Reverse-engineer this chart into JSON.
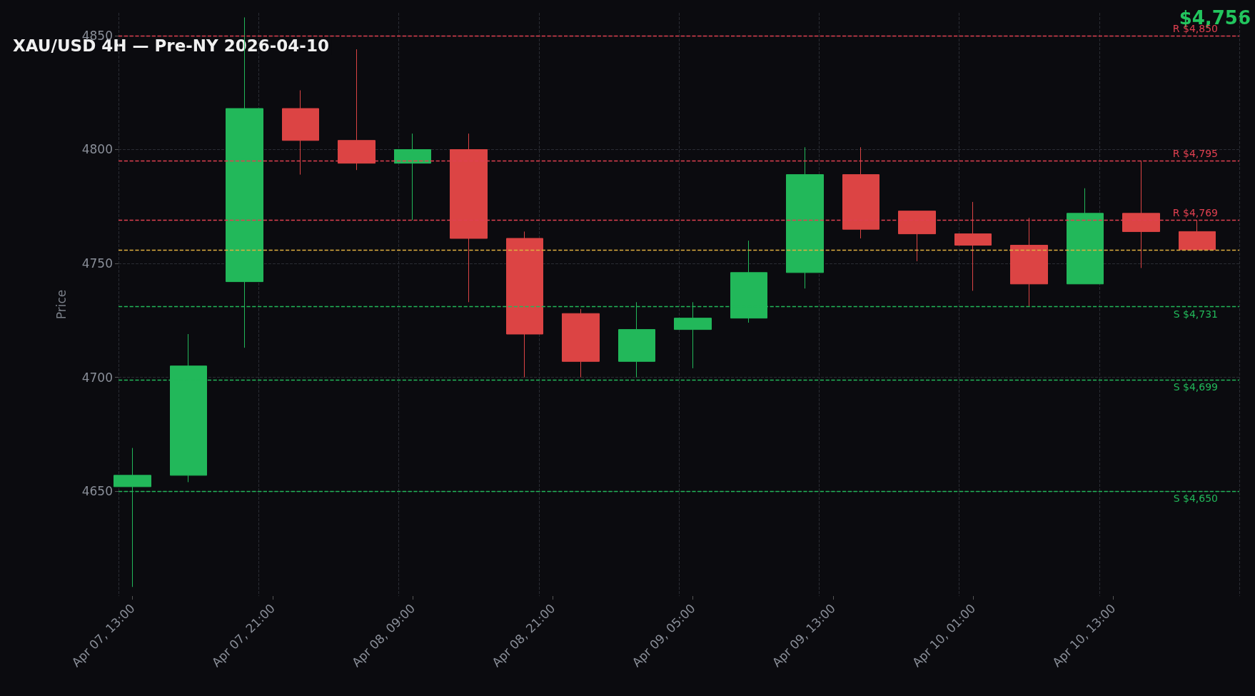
{
  "chart_data": {
    "type": "candlestick",
    "title": "XAU/USD 4H — Pre-NY 2026-04-10",
    "ylabel": "Price",
    "annotations": [
      "$4,756"
    ],
    "categories": [
      "Apr 07, 13:00",
      null,
      null,
      null,
      null,
      "Apr 07, 21:00",
      null,
      null,
      null,
      null,
      "Apr 08, 09:00",
      null,
      null,
      null,
      null,
      "Apr 08, 21:00",
      null,
      null,
      null,
      null,
      "Apr 09, 05:00",
      null,
      null,
      null,
      null,
      "Apr 09, 13:00",
      null,
      null,
      null,
      null,
      "Apr 10, 01:00",
      null,
      null,
      null,
      null,
      "Apr 10, 13:00",
      null,
      null,
      null,
      null
    ],
    "ohlc": [
      [
        4652,
        4669,
        4608,
        4657
      ],
      null,
      [
        4657,
        4719,
        4654,
        4705
      ],
      null,
      [
        4742,
        4858,
        4713,
        4818
      ],
      null,
      [
        4818,
        4826,
        4789,
        4804
      ],
      null,
      [
        4804,
        4844,
        4791,
        4794
      ],
      null,
      [
        4794,
        4807,
        4769,
        4800
      ],
      null,
      [
        4800,
        4807,
        4733,
        4761
      ],
      null,
      [
        4761,
        4764,
        4700,
        4719
      ],
      null,
      [
        4728,
        4730,
        4700,
        4707
      ],
      null,
      [
        4707,
        4733,
        4700,
        4721
      ],
      null,
      [
        4721,
        4733,
        4704,
        4726
      ],
      null,
      [
        4726,
        4760,
        4724,
        4746
      ],
      null,
      [
        4746,
        4801,
        4739,
        4789
      ],
      null,
      [
        4789,
        4801,
        4761,
        4765
      ],
      null,
      [
        4773,
        4773,
        4751,
        4763
      ],
      null,
      [
        4763,
        4777,
        4738,
        4758
      ],
      null,
      [
        4758,
        4770,
        4731,
        4741
      ],
      null,
      [
        4741,
        4783,
        4741,
        4772
      ],
      null,
      [
        4772,
        4795,
        4748,
        4764
      ],
      null,
      [
        4764,
        4769,
        4756,
        4756
      ],
      null
    ],
    "colors": [
      "#22b85a",
      null,
      "#22b85a",
      null,
      "#22b85a",
      null,
      "#dc4444",
      null,
      "#dc4444",
      null,
      "#22b85a",
      null,
      "#dc4444",
      null,
      "#dc4444",
      null,
      "#dc4444",
      null,
      "#22b85a",
      null,
      "#22b85a",
      null,
      "#22b85a",
      null,
      "#22b85a",
      null,
      "#dc4444",
      null,
      "#dc4444",
      null,
      "#dc4444",
      null,
      "#dc4444",
      null,
      "#22b85a",
      null,
      "#dc4444",
      null,
      "#dc4444",
      null
    ],
    "ylim": [
      4604,
      4860
    ],
    "yticks": [
      4650,
      4700,
      4750,
      4800,
      4850
    ],
    "grid": true,
    "ref_lines": [
      {
        "axis": "y",
        "value": 4850,
        "label": "R $4,850",
        "color": "#e04050",
        "line_style": "dashed"
      },
      {
        "axis": "y",
        "value": 4795,
        "label": "R $4,795",
        "color": "#e04050",
        "line_style": "dashed"
      },
      {
        "axis": "y",
        "value": 4769,
        "label": "R $4,769",
        "color": "#e04050",
        "line_style": "dashed"
      },
      {
        "axis": "y",
        "value": 4756,
        "label": null,
        "color": "#e0b040",
        "line_style": "dashed"
      },
      {
        "axis": "y",
        "value": 4731,
        "label": "S $4,731",
        "color": "#22b85a",
        "line_style": "dashed"
      },
      {
        "axis": "y",
        "value": 4699,
        "label": "S $4,699",
        "color": "#22b85a",
        "line_style": "dashed"
      },
      {
        "axis": "y",
        "value": 4650,
        "label": "S $4,650",
        "color": "#22b85a",
        "line_style": "dashed"
      }
    ]
  }
}
